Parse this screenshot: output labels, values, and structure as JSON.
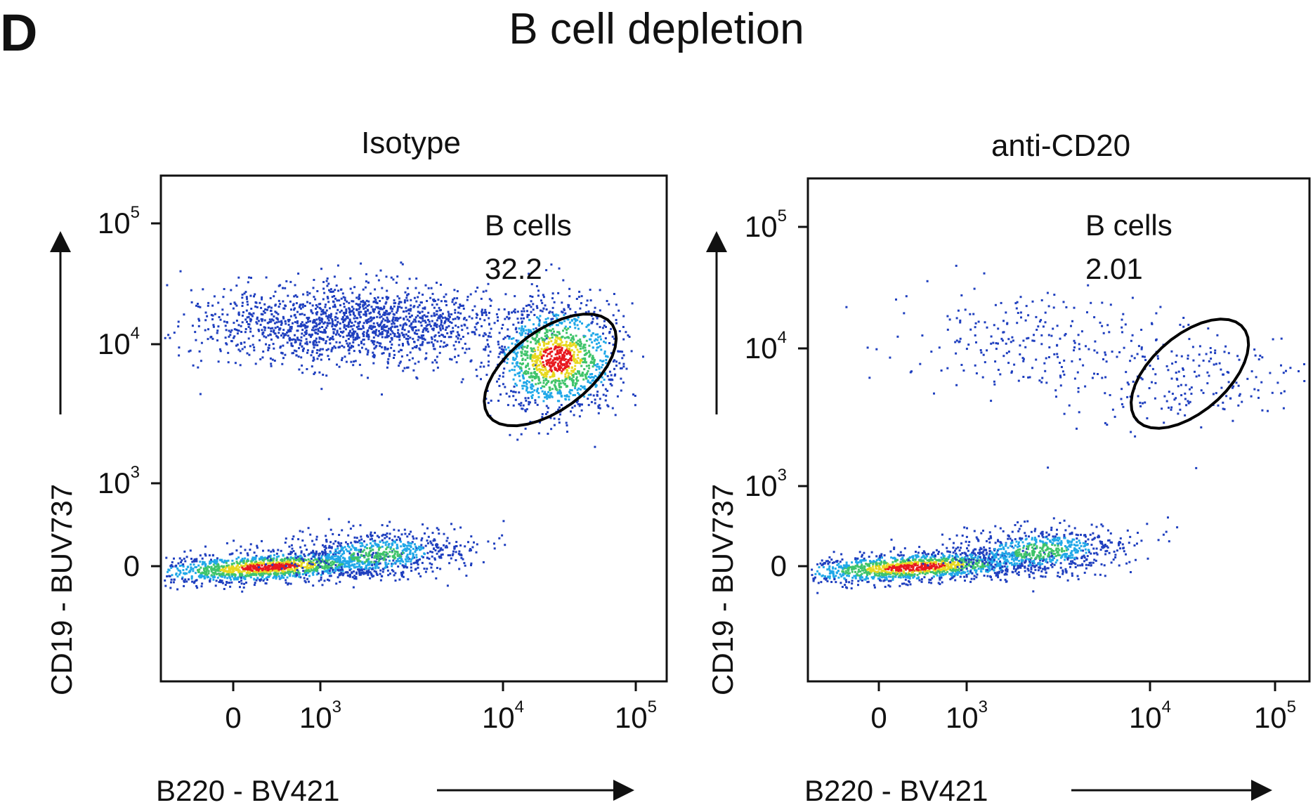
{
  "figure": {
    "panel_letter": "D",
    "title": "B cell depletion"
  },
  "colors": {
    "density_low": "#1f3fbf",
    "density_mid1": "#20a8e8",
    "density_mid2": "#3fc46a",
    "density_mid3": "#e8d81e",
    "density_high": "#e8181e",
    "gate": "#000000"
  },
  "chart_data": [
    {
      "type": "scatter",
      "subtitle": "Isotype",
      "xlabel": "B220  - BV421",
      "ylabel": "CD19 - BUV737",
      "x_scale": "biexponential",
      "y_scale": "biexponential",
      "x_ticks": [
        "0",
        "10^3",
        "10^4",
        "10^5"
      ],
      "y_ticks": [
        "0",
        "10^3",
        "10^4",
        "10^5"
      ],
      "gate": {
        "label": "B cells",
        "percent": "32.2",
        "x_range": [
          8000,
          70000
        ],
        "y_range": [
          3000,
          15000
        ]
      },
      "populations": [
        {
          "name": "CD19- B220 low (main)",
          "x_center": 400,
          "y_center": 0,
          "density": "high"
        },
        {
          "name": "CD19- B220 low-mid",
          "x_center": 2000,
          "y_center": 150,
          "density": "mid"
        },
        {
          "name": "CD19 hi B220 lo-mid",
          "x_center": 1500,
          "y_center": 15000,
          "density": "low"
        },
        {
          "name": "B cells (gated)",
          "x_center": 25000,
          "y_center": 8000,
          "density": "mid-high"
        }
      ]
    },
    {
      "type": "scatter",
      "subtitle": "anti-CD20",
      "xlabel": "B220  - BV421",
      "ylabel": "CD19 - BUV737",
      "x_scale": "biexponential",
      "y_scale": "biexponential",
      "x_ticks": [
        "0",
        "10^3",
        "10^4",
        "10^5"
      ],
      "y_ticks": [
        "0",
        "10^3",
        "10^4",
        "10^5"
      ],
      "gate": {
        "label": "B cells",
        "percent": "2.01",
        "x_range": [
          8000,
          60000
        ],
        "y_range": [
          3000,
          15000
        ]
      },
      "populations": [
        {
          "name": "CD19- B220 low (main)",
          "x_center": 400,
          "y_center": 0,
          "density": "high"
        },
        {
          "name": "CD19- B220 low-mid",
          "x_center": 2500,
          "y_center": 200,
          "density": "mid"
        },
        {
          "name": "CD19 hi B220 lo-mid",
          "x_center": 2000,
          "y_center": 12000,
          "density": "sparse"
        },
        {
          "name": "B cells (gated)",
          "x_center": 15000,
          "y_center": 6000,
          "density": "sparse"
        }
      ]
    }
  ]
}
